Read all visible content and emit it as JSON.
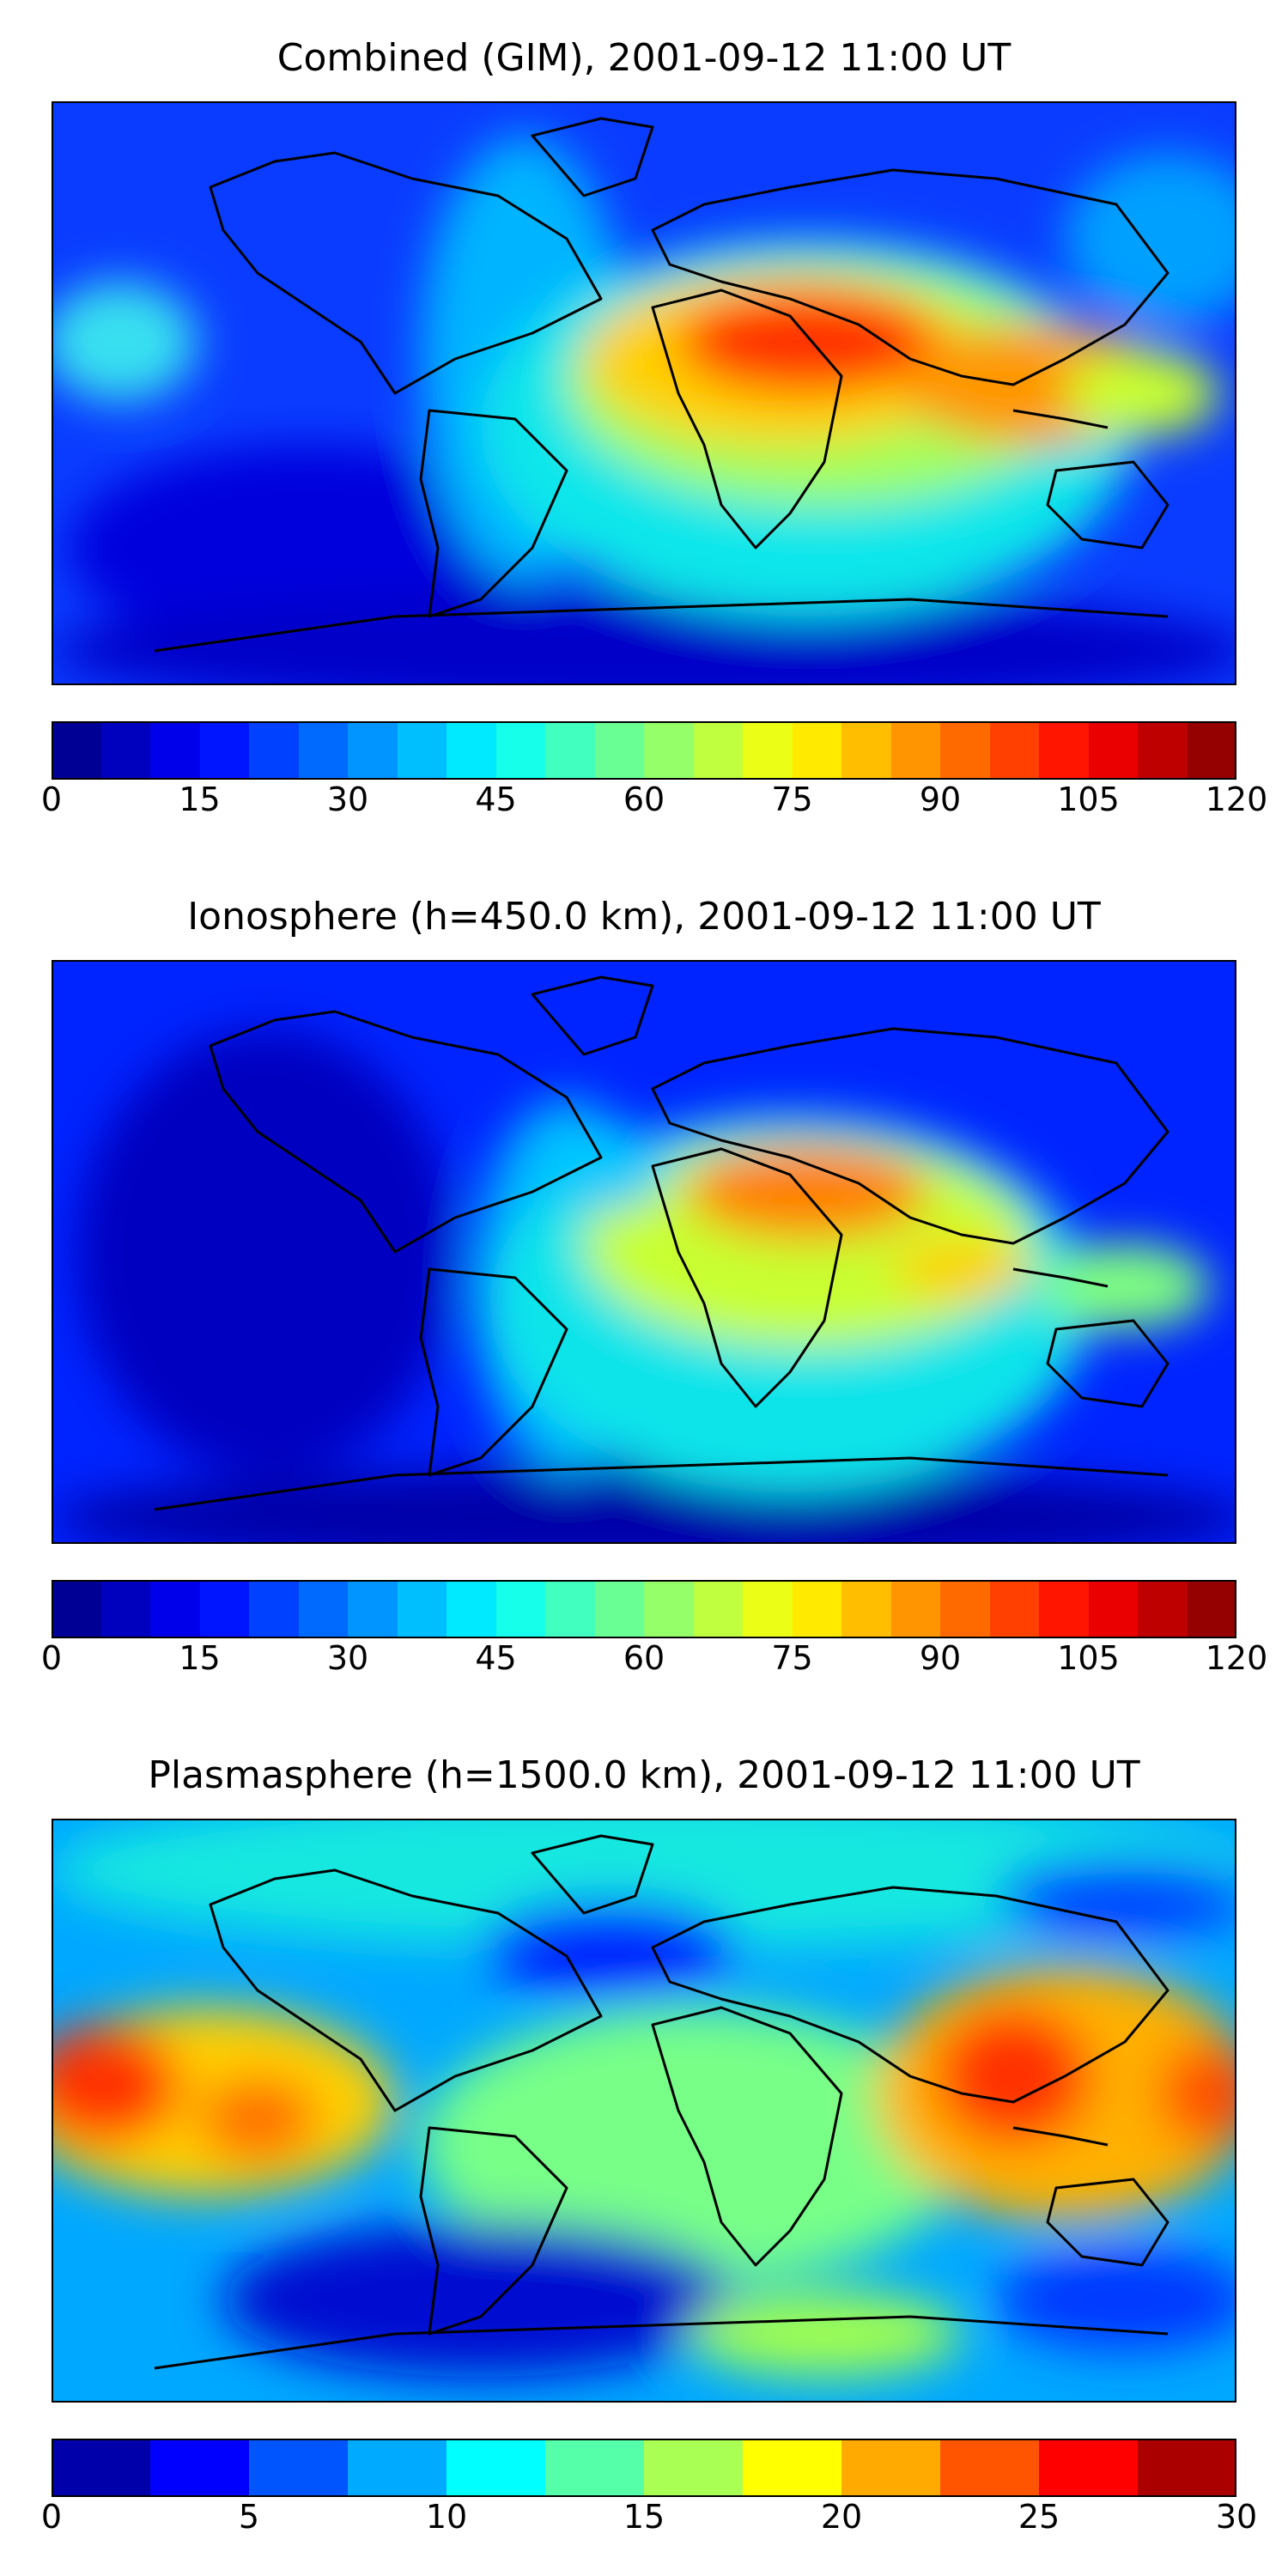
{
  "panels": [
    {
      "title": "Combined (GIM), 2001-09-12 11:00 UT",
      "colorbar": {
        "min": 0,
        "max": 120,
        "levels": 24,
        "ticks": [
          "0",
          "15",
          "30",
          "45",
          "60",
          "75",
          "90",
          "105",
          "120"
        ],
        "colormap": "jet"
      }
    },
    {
      "title": "Ionosphere  (h=450.0 km), 2001-09-12 11:00 UT",
      "colorbar": {
        "min": 0,
        "max": 120,
        "levels": 24,
        "ticks": [
          "0",
          "15",
          "30",
          "45",
          "60",
          "75",
          "90",
          "105",
          "120"
        ],
        "colormap": "jet"
      }
    },
    {
      "title": "Plasmasphere (h=1500.0 km), 2001-09-12 11:00 UT",
      "colorbar": {
        "min": 0,
        "max": 30,
        "levels": 12,
        "ticks": [
          "0",
          "5",
          "10",
          "15",
          "20",
          "25",
          "30"
        ],
        "colormap": "jet"
      }
    }
  ]
}
